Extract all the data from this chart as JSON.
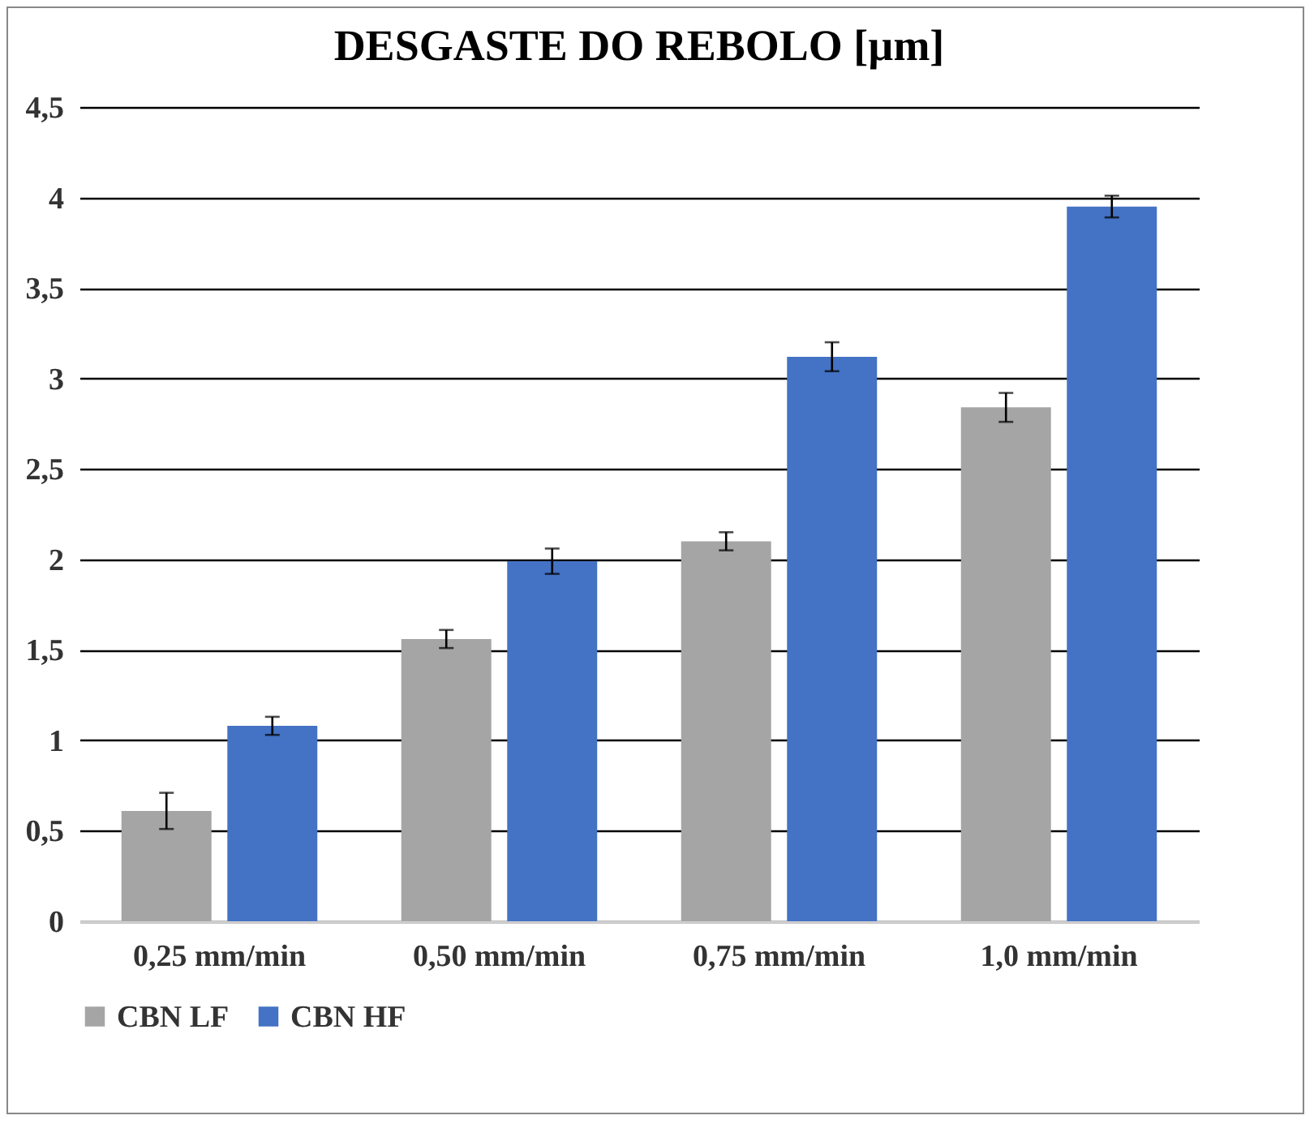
{
  "chart_data": {
    "type": "bar",
    "title": "DESGASTE DO REBOLO [µm]",
    "categories": [
      "0,25 mm/min",
      "0,50 mm/min",
      "0,75 mm/min",
      "1,0 mm/min"
    ],
    "series": [
      {
        "name": "CBN LF",
        "color": "#a5a5a5",
        "values": [
          0.61,
          1.56,
          2.1,
          2.84
        ],
        "errors": [
          0.1,
          0.05,
          0.05,
          0.08
        ]
      },
      {
        "name": "CBN HF",
        "color": "#4472c4",
        "values": [
          1.08,
          1.99,
          3.12,
          3.95
        ],
        "errors": [
          0.05,
          0.07,
          0.08,
          0.06
        ]
      }
    ],
    "ylim": [
      0,
      4.5
    ],
    "yticks": [
      0,
      {
        "value": 0.5,
        "label": "0,5"
      },
      1,
      {
        "value": 1.5,
        "label": "1,5"
      },
      2,
      {
        "value": 2.5,
        "label": "2,5"
      },
      3,
      {
        "value": 3.5,
        "label": "3,5"
      },
      4,
      {
        "value": 4.5,
        "label": "4,5"
      }
    ],
    "grid": "y",
    "legend": "bottom"
  }
}
